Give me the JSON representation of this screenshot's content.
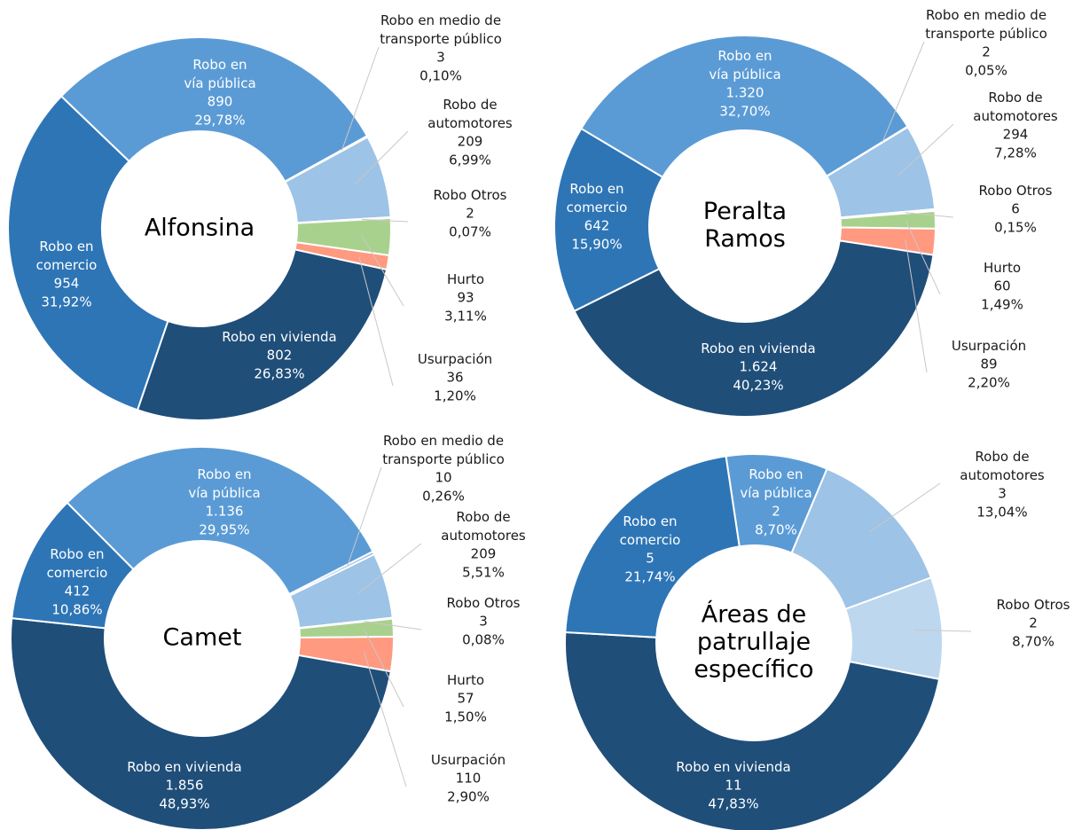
{
  "chart_data": [
    {
      "type": "pie",
      "title": [
        "Alfonsina"
      ],
      "categories": [
        "Robo en medio de\ntransporte público",
        "Robo de\nautomotores",
        "Robo Otros",
        "Hurto",
        "Usurpación",
        "Robo en vivienda",
        "Robo en\ncomercio",
        "Robo en\nvía pública"
      ],
      "values": [
        3,
        209,
        2,
        93,
        36,
        802,
        954,
        890
      ],
      "percents": [
        0.1,
        6.99,
        0.07,
        3.11,
        1.2,
        26.83,
        31.92,
        29.78
      ],
      "percent_labels": [
        "0,10%",
        "6,99%",
        "0,07%",
        "3,11%",
        "1,20%",
        "26,83%",
        "31,92%",
        "29,78%"
      ],
      "colors": [
        "#8fb4e3",
        "#9dc3e6",
        "#bdd7ee",
        "#a9d18e",
        "#ff9980",
        "#1f4e79",
        "#2e75b6",
        "#5b9bd5"
      ]
    },
    {
      "type": "pie",
      "title": [
        "Peralta",
        "Ramos"
      ],
      "categories": [
        "Robo en medio de\ntransporte público",
        "Robo de\nautomotores",
        "Robo Otros",
        "Hurto",
        "Usurpación",
        "Robo en vivienda",
        "Robo en\ncomercio",
        "Robo en\nvía pública"
      ],
      "values": [
        2,
        294,
        6,
        60,
        89,
        1624,
        642,
        1320
      ],
      "value_labels": [
        "2",
        "294",
        "6",
        "60",
        "89",
        "1.624",
        "642",
        "1.320"
      ],
      "percents": [
        0.05,
        7.28,
        0.15,
        1.49,
        2.2,
        40.23,
        15.9,
        32.7
      ],
      "percent_labels": [
        "0,05%",
        "7,28%",
        "0,15%",
        "1,49%",
        "2,20%",
        "40,23%",
        "15,90%",
        "32,70%"
      ],
      "colors": [
        "#8fb4e3",
        "#9dc3e6",
        "#a9d18e",
        "#a9d18e",
        "#ff9980",
        "#1f4e79",
        "#2e75b6",
        "#5b9bd5"
      ]
    },
    {
      "type": "pie",
      "title": [
        "Camet"
      ],
      "categories": [
        "Robo en medio de\ntransporte público",
        "Robo de\nautomotores",
        "Robo Otros",
        "Hurto",
        "Usurpación",
        "Robo en vivienda",
        "Robo en\ncomercio",
        "Robo en\nvía pública"
      ],
      "values": [
        10,
        209,
        3,
        57,
        110,
        1856,
        412,
        1136
      ],
      "value_labels": [
        "10",
        "209",
        "3",
        "57",
        "110",
        "1.856",
        "412",
        "1.136"
      ],
      "percents": [
        0.26,
        5.51,
        0.08,
        1.5,
        2.9,
        48.93,
        10.86,
        29.95
      ],
      "percent_labels": [
        "0,26%",
        "5,51%",
        "0,08%",
        "1,50%",
        "2,90%",
        "48,93%",
        "10,86%",
        "29,95%"
      ],
      "colors": [
        "#8fb4e3",
        "#9dc3e6",
        "#bdd7ee",
        "#a9d18e",
        "#ff9980",
        "#1f4e79",
        "#2e75b6",
        "#5b9bd5"
      ]
    },
    {
      "type": "pie",
      "title": [
        "Áreas de",
        "patrullaje",
        "específico"
      ],
      "categories": [
        "Robo en\nvía pública",
        "Robo de\nautomotores",
        "Robo Otros",
        "Robo en vivienda",
        "Robo en\ncomercio"
      ],
      "values": [
        2,
        3,
        2,
        11,
        5
      ],
      "percents": [
        8.7,
        13.04,
        8.7,
        47.83,
        21.74
      ],
      "percent_labels": [
        "8,70%",
        "13,04%",
        "8,70%",
        "47,83%",
        "21,74%"
      ],
      "colors": [
        "#5b9bd5",
        "#9dc3e6",
        "#bdd7ee",
        "#1f4e79",
        "#2e75b6"
      ]
    }
  ]
}
